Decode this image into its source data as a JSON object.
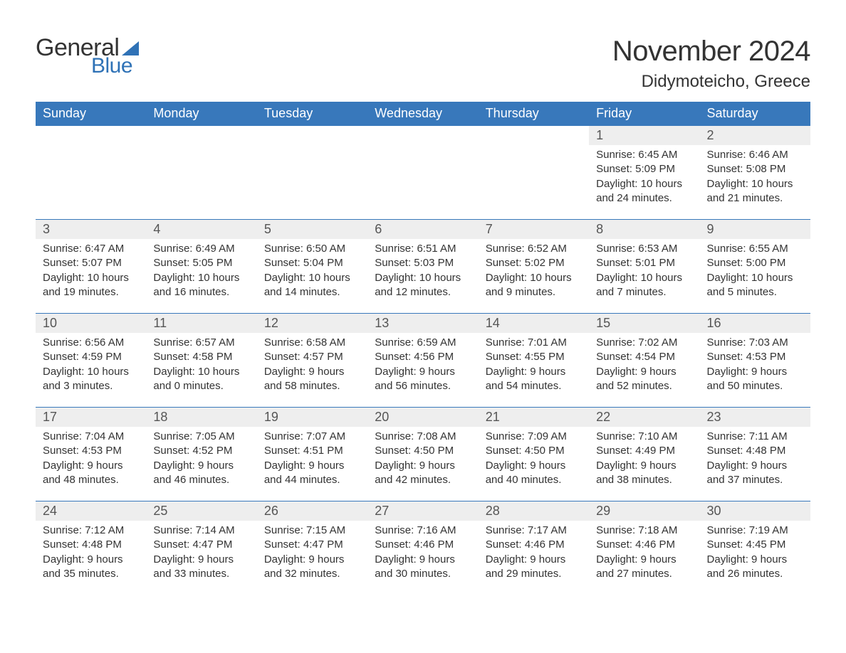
{
  "brand": {
    "word1": "General",
    "word2": "Blue",
    "word1_color": "#333333",
    "word2_color": "#2f72b6",
    "sail_color": "#2f72b6"
  },
  "title": "November 2024",
  "location": "Didymoteicho, Greece",
  "colors": {
    "header_bg": "#3878bb",
    "header_text": "#ffffff",
    "daynum_bg": "#eeeeee",
    "row_border": "#3878bb",
    "body_text": "#333333",
    "page_bg": "#ffffff"
  },
  "fonts": {
    "title_size_pt": 30,
    "location_size_pt": 18,
    "dayheader_size_pt": 14,
    "daynum_size_pt": 14,
    "body_size_pt": 11
  },
  "day_headers": [
    "Sunday",
    "Monday",
    "Tuesday",
    "Wednesday",
    "Thursday",
    "Friday",
    "Saturday"
  ],
  "labels": {
    "sunrise": "Sunrise:",
    "sunset": "Sunset:",
    "daylight": "Daylight:"
  },
  "weeks": [
    [
      {
        "day": "",
        "sunrise": "",
        "sunset": "",
        "daylight": ""
      },
      {
        "day": "",
        "sunrise": "",
        "sunset": "",
        "daylight": ""
      },
      {
        "day": "",
        "sunrise": "",
        "sunset": "",
        "daylight": ""
      },
      {
        "day": "",
        "sunrise": "",
        "sunset": "",
        "daylight": ""
      },
      {
        "day": "",
        "sunrise": "",
        "sunset": "",
        "daylight": ""
      },
      {
        "day": "1",
        "sunrise": "6:45 AM",
        "sunset": "5:09 PM",
        "daylight": "10 hours and 24 minutes."
      },
      {
        "day": "2",
        "sunrise": "6:46 AM",
        "sunset": "5:08 PM",
        "daylight": "10 hours and 21 minutes."
      }
    ],
    [
      {
        "day": "3",
        "sunrise": "6:47 AM",
        "sunset": "5:07 PM",
        "daylight": "10 hours and 19 minutes."
      },
      {
        "day": "4",
        "sunrise": "6:49 AM",
        "sunset": "5:05 PM",
        "daylight": "10 hours and 16 minutes."
      },
      {
        "day": "5",
        "sunrise": "6:50 AM",
        "sunset": "5:04 PM",
        "daylight": "10 hours and 14 minutes."
      },
      {
        "day": "6",
        "sunrise": "6:51 AM",
        "sunset": "5:03 PM",
        "daylight": "10 hours and 12 minutes."
      },
      {
        "day": "7",
        "sunrise": "6:52 AM",
        "sunset": "5:02 PM",
        "daylight": "10 hours and 9 minutes."
      },
      {
        "day": "8",
        "sunrise": "6:53 AM",
        "sunset": "5:01 PM",
        "daylight": "10 hours and 7 minutes."
      },
      {
        "day": "9",
        "sunrise": "6:55 AM",
        "sunset": "5:00 PM",
        "daylight": "10 hours and 5 minutes."
      }
    ],
    [
      {
        "day": "10",
        "sunrise": "6:56 AM",
        "sunset": "4:59 PM",
        "daylight": "10 hours and 3 minutes."
      },
      {
        "day": "11",
        "sunrise": "6:57 AM",
        "sunset": "4:58 PM",
        "daylight": "10 hours and 0 minutes."
      },
      {
        "day": "12",
        "sunrise": "6:58 AM",
        "sunset": "4:57 PM",
        "daylight": "9 hours and 58 minutes."
      },
      {
        "day": "13",
        "sunrise": "6:59 AM",
        "sunset": "4:56 PM",
        "daylight": "9 hours and 56 minutes."
      },
      {
        "day": "14",
        "sunrise": "7:01 AM",
        "sunset": "4:55 PM",
        "daylight": "9 hours and 54 minutes."
      },
      {
        "day": "15",
        "sunrise": "7:02 AM",
        "sunset": "4:54 PM",
        "daylight": "9 hours and 52 minutes."
      },
      {
        "day": "16",
        "sunrise": "7:03 AM",
        "sunset": "4:53 PM",
        "daylight": "9 hours and 50 minutes."
      }
    ],
    [
      {
        "day": "17",
        "sunrise": "7:04 AM",
        "sunset": "4:53 PM",
        "daylight": "9 hours and 48 minutes."
      },
      {
        "day": "18",
        "sunrise": "7:05 AM",
        "sunset": "4:52 PM",
        "daylight": "9 hours and 46 minutes."
      },
      {
        "day": "19",
        "sunrise": "7:07 AM",
        "sunset": "4:51 PM",
        "daylight": "9 hours and 44 minutes."
      },
      {
        "day": "20",
        "sunrise": "7:08 AM",
        "sunset": "4:50 PM",
        "daylight": "9 hours and 42 minutes."
      },
      {
        "day": "21",
        "sunrise": "7:09 AM",
        "sunset": "4:50 PM",
        "daylight": "9 hours and 40 minutes."
      },
      {
        "day": "22",
        "sunrise": "7:10 AM",
        "sunset": "4:49 PM",
        "daylight": "9 hours and 38 minutes."
      },
      {
        "day": "23",
        "sunrise": "7:11 AM",
        "sunset": "4:48 PM",
        "daylight": "9 hours and 37 minutes."
      }
    ],
    [
      {
        "day": "24",
        "sunrise": "7:12 AM",
        "sunset": "4:48 PM",
        "daylight": "9 hours and 35 minutes."
      },
      {
        "day": "25",
        "sunrise": "7:14 AM",
        "sunset": "4:47 PM",
        "daylight": "9 hours and 33 minutes."
      },
      {
        "day": "26",
        "sunrise": "7:15 AM",
        "sunset": "4:47 PM",
        "daylight": "9 hours and 32 minutes."
      },
      {
        "day": "27",
        "sunrise": "7:16 AM",
        "sunset": "4:46 PM",
        "daylight": "9 hours and 30 minutes."
      },
      {
        "day": "28",
        "sunrise": "7:17 AM",
        "sunset": "4:46 PM",
        "daylight": "9 hours and 29 minutes."
      },
      {
        "day": "29",
        "sunrise": "7:18 AM",
        "sunset": "4:46 PM",
        "daylight": "9 hours and 27 minutes."
      },
      {
        "day": "30",
        "sunrise": "7:19 AM",
        "sunset": "4:45 PM",
        "daylight": "9 hours and 26 minutes."
      }
    ]
  ]
}
